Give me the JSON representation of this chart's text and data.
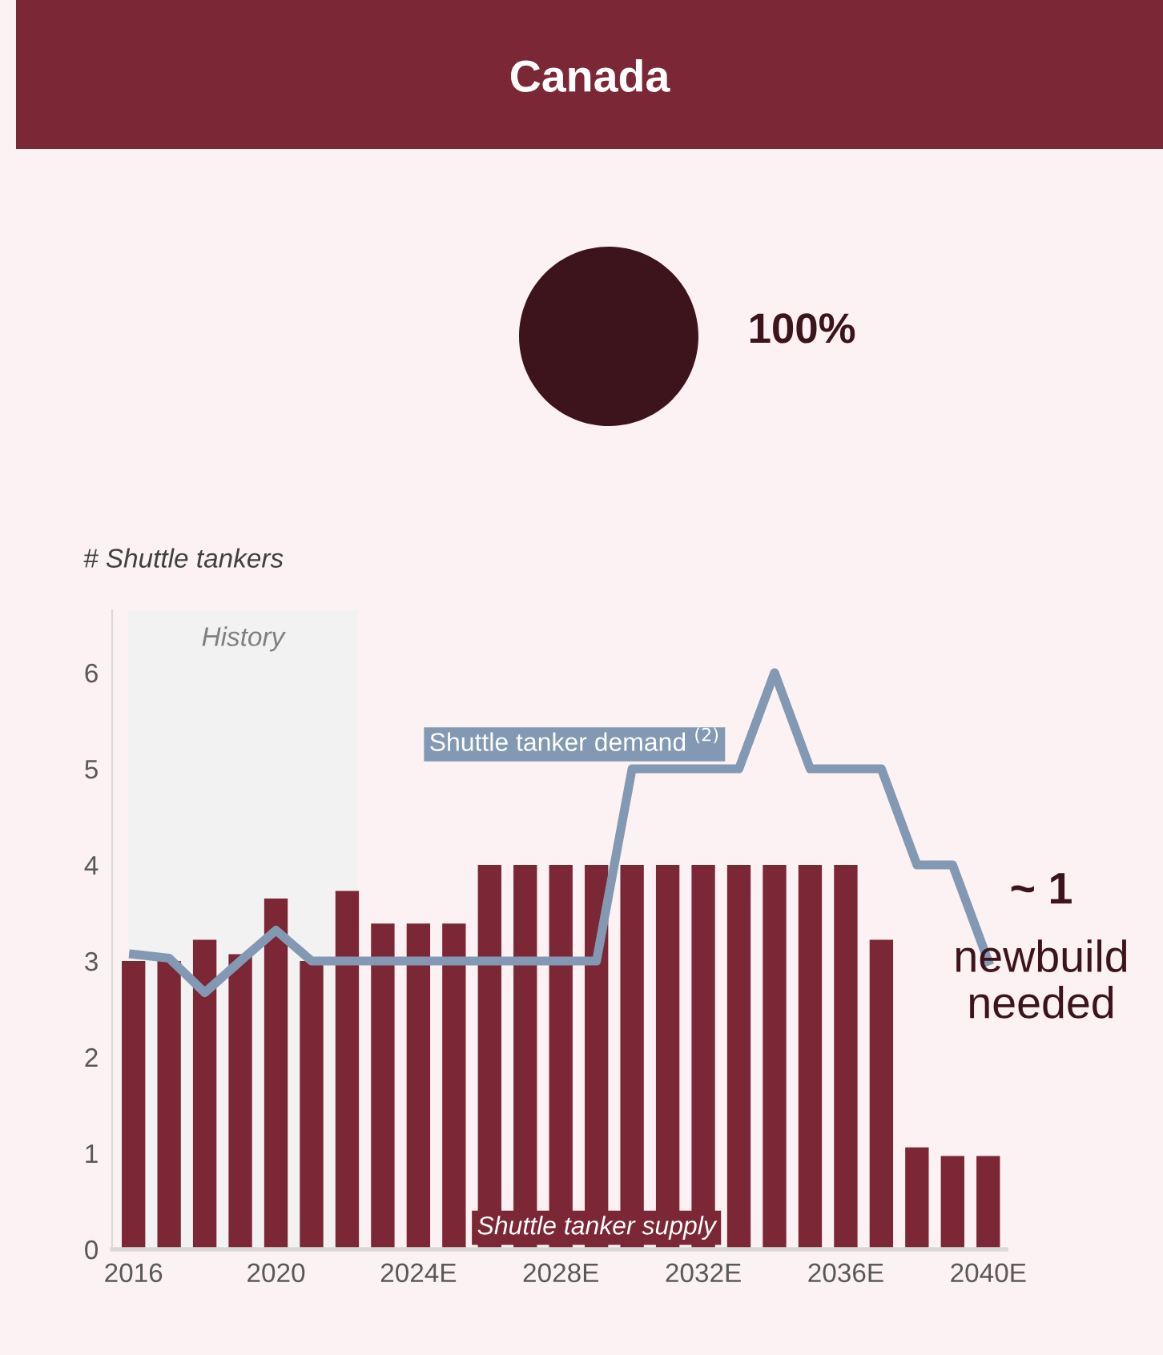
{
  "chart_data": [
    {
      "type": "pie",
      "title": "Canada",
      "categories": [
        null
      ],
      "values": [
        100
      ],
      "colors": [
        "#3d141c"
      ],
      "value_labels": [
        "100%"
      ],
      "legend": false
    },
    {
      "type": "bar",
      "ylabel": "# Shuttle tankers",
      "x": [
        2016,
        2017,
        2018,
        2019,
        2020,
        2021,
        2022,
        2023,
        2024,
        2025,
        2026,
        2027,
        2028,
        2029,
        2030,
        2031,
        2032,
        2033,
        2034,
        2035,
        2036,
        2037,
        2038,
        2039,
        2040
      ],
      "series": [
        {
          "name": "Shuttle tanker supply",
          "type": "bar",
          "color": "#7b2735",
          "values": [
            3.0,
            3.0,
            3.22,
            3.07,
            3.65,
            3.0,
            3.73,
            3.39,
            3.39,
            3.39,
            4.0,
            4.0,
            4.0,
            4.0,
            4.0,
            4.0,
            4.0,
            4.0,
            4.0,
            4.0,
            4.0,
            3.22,
            1.06,
            0.97,
            0.97
          ]
        },
        {
          "name": "Shuttle tanker demand $^{(2)}$",
          "type": "line",
          "color": "#8399b3",
          "values": [
            3.07,
            3.03,
            2.67,
            3.0,
            3.32,
            3.0,
            3.0,
            3.0,
            3.0,
            3.0,
            3.0,
            3.0,
            3.0,
            3.0,
            5.0,
            5.0,
            5.0,
            5.0,
            6.0,
            5.0,
            5.0,
            5.0,
            4.0,
            4.0,
            3.0
          ]
        }
      ],
      "xlim": [
        2015.4,
        2040.5
      ],
      "ylim": [
        0,
        6.65
      ],
      "xticks": [
        2016,
        2020,
        {
          "value": 2024,
          "label": "2024E"
        },
        {
          "value": 2028,
          "label": "2028E"
        },
        {
          "value": 2032,
          "label": "2032E"
        },
        {
          "value": 2036,
          "label": "2036E"
        },
        {
          "value": 2040,
          "label": "2040E"
        }
      ],
      "yticks": [
        0,
        1,
        2,
        3,
        4,
        5,
        6
      ],
      "bands": [
        {
          "axis": "x",
          "from": 2015.85,
          "to": 2022.3,
          "label": "History",
          "color": "#f2f2f2"
        }
      ],
      "annotations": [
        "~ 1",
        "newbuild\nneeded"
      ],
      "grid": false,
      "legend": false,
      "marker": "none",
      "line_style": "solid"
    }
  ]
}
